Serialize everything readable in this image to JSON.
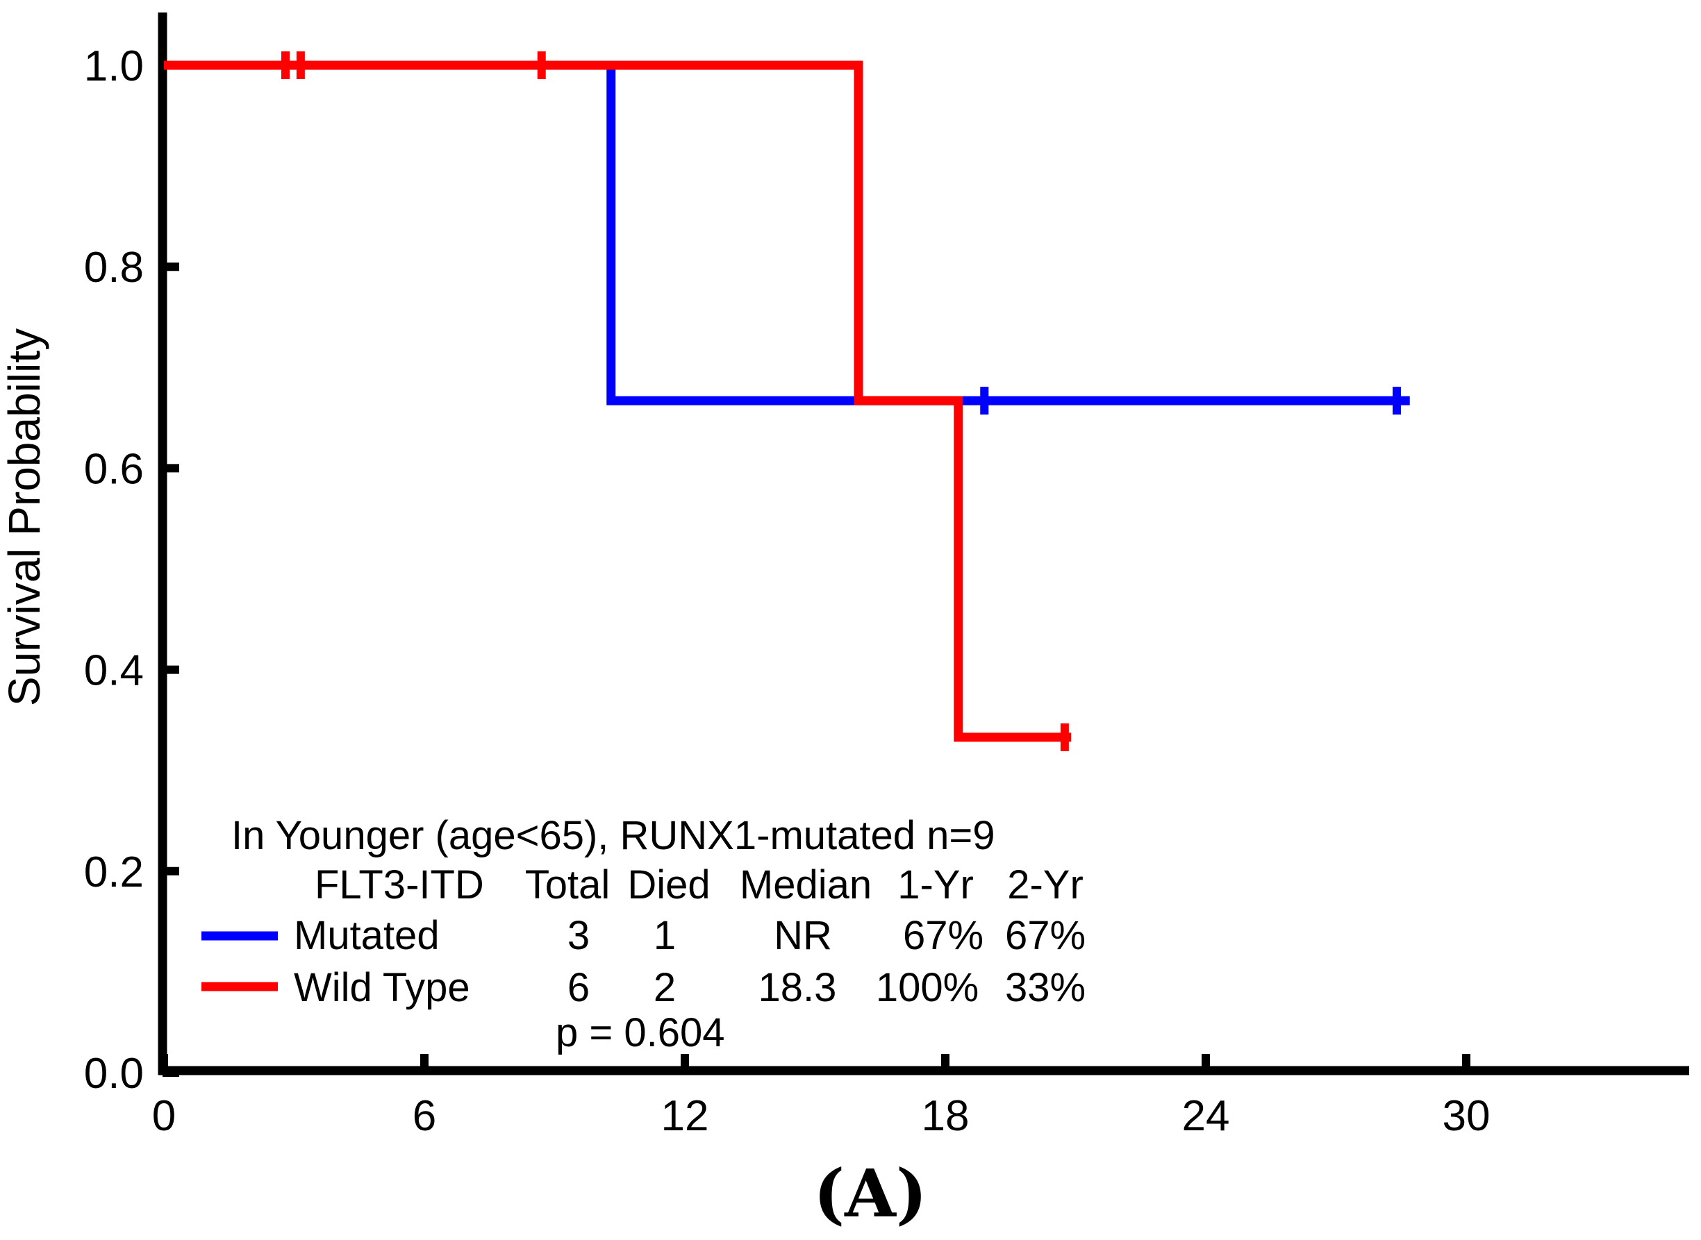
{
  "figure_label": "(A)",
  "colors": {
    "mutated": "#0000ff",
    "wild_type": "#ff0000",
    "axis": "#000000"
  },
  "chart_data": {
    "type": "line",
    "subtype": "kaplan-meier-step",
    "title": "",
    "xlabel": "",
    "ylabel": "Survival Probability",
    "x_ticks": [
      0,
      6,
      12,
      18,
      24,
      30
    ],
    "x_tick_labels": [
      "0",
      "6",
      "12",
      "18",
      "24",
      "30"
    ],
    "xlim": [
      0,
      35.1
    ],
    "y_ticks": [
      1.0,
      0.8,
      0.6,
      0.4,
      0.2,
      0.0
    ],
    "y_tick_labels": [
      "1.0",
      "0.8",
      "0.6",
      "0.4",
      "0.2",
      "0.0"
    ],
    "ylim": [
      0.0,
      1.0
    ],
    "grid": false,
    "legend_position": "inside-lower-left-table",
    "series": [
      {
        "name": "Mutated",
        "color": "#0000ff",
        "points": [
          [
            0,
            1.0
          ],
          [
            10.3,
            1.0
          ],
          [
            10.3,
            0.667
          ],
          [
            28.7,
            0.667
          ]
        ],
        "censors": [
          [
            18.9,
            0.667
          ],
          [
            28.4,
            0.667
          ]
        ]
      },
      {
        "name": "Wild Type",
        "color": "#ff0000",
        "points": [
          [
            0,
            1.0
          ],
          [
            16.0,
            1.0
          ],
          [
            16.0,
            0.667
          ],
          [
            18.3,
            0.667
          ],
          [
            18.3,
            0.333
          ],
          [
            20.9,
            0.333
          ]
        ],
        "censors": [
          [
            2.8,
            1.0
          ],
          [
            3.15,
            1.0
          ],
          [
            8.7,
            1.0
          ],
          [
            20.75,
            0.333
          ]
        ]
      }
    ],
    "annotation": {
      "line1": "In Younger (age<65), RUNX1-mutated n=9",
      "table": {
        "headers": {
          "group": "FLT3-ITD",
          "total": "Total",
          "died": "Died",
          "median": "Median",
          "yr1": "1-Yr",
          "yr2": "2-Yr"
        },
        "rows": [
          {
            "group": "Mutated",
            "total": "3",
            "died": "1",
            "median": "NR",
            "yr1": "67%",
            "yr2": "67%"
          },
          {
            "group": "Wild Type",
            "total": "6",
            "died": "2",
            "median": "18.3",
            "yr1": "100%",
            "yr2": "33%"
          }
        ]
      },
      "p_value": "p = 0.604"
    }
  }
}
